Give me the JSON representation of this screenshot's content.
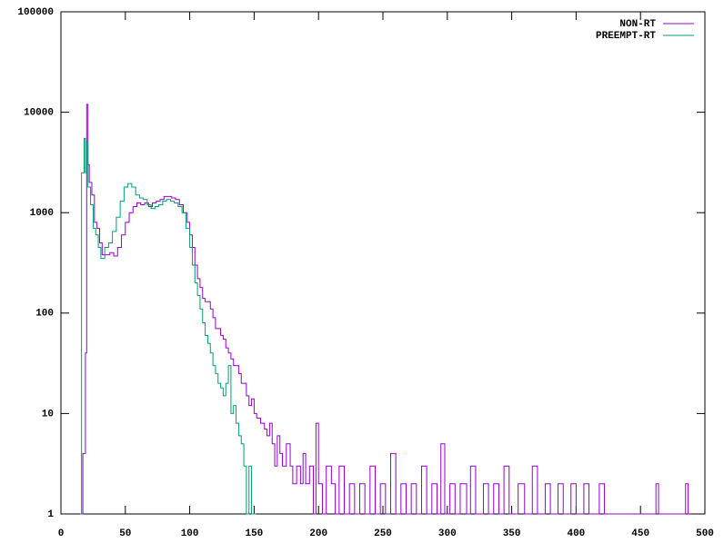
{
  "chart_data": {
    "type": "step",
    "log_y": true,
    "xlim": [
      0,
      500
    ],
    "xticks": [
      0,
      50,
      100,
      150,
      200,
      250,
      300,
      350,
      400,
      450,
      500
    ],
    "ylim": [
      1,
      100000
    ],
    "yticks": [
      1,
      10,
      100,
      1000,
      10000,
      100000
    ],
    "legend": "top-right",
    "series": [
      {
        "name": "NON-RT",
        "color": "#9400d3",
        "x": [
          15,
          17,
          19,
          20,
          21,
          22,
          24,
          26,
          28,
          30,
          32,
          35,
          38,
          41,
          44,
          47,
          50,
          53,
          56,
          59,
          62,
          65,
          68,
          71,
          74,
          77,
          80,
          83,
          86,
          89,
          92,
          95,
          98,
          100,
          102,
          104,
          106,
          108,
          110,
          112,
          114,
          116,
          118,
          120,
          122,
          124,
          126,
          128,
          130,
          132,
          134,
          136,
          138,
          140,
          142,
          144,
          146,
          148,
          150,
          152,
          155,
          158,
          160,
          162,
          164,
          166,
          168,
          170,
          172,
          175,
          178,
          180,
          183,
          186,
          188,
          190,
          193,
          196,
          198,
          200,
          203,
          206,
          210,
          213,
          216,
          220,
          224,
          228,
          232,
          236,
          240,
          244,
          248,
          252,
          256,
          260,
          264,
          268,
          272,
          276,
          280,
          284,
          288,
          292,
          295,
          298,
          302,
          306,
          310,
          315,
          318,
          322,
          328,
          332,
          336,
          340,
          344,
          348,
          355,
          360,
          366,
          370,
          376,
          380,
          386,
          390,
          396,
          400,
          406,
          410,
          418,
          422,
          430,
          440,
          450,
          462,
          464,
          485,
          487
        ],
        "values": [
          1,
          4,
          40,
          12000,
          3000,
          2000,
          1500,
          800,
          700,
          500,
          380,
          380,
          400,
          370,
          450,
          600,
          800,
          1000,
          1150,
          1250,
          1200,
          1250,
          1150,
          1250,
          1300,
          1350,
          1450,
          1450,
          1400,
          1350,
          1200,
          1000,
          800,
          600,
          450,
          300,
          220,
          180,
          140,
          130,
          130,
          110,
          90,
          70,
          70,
          60,
          55,
          45,
          40,
          35,
          30,
          30,
          25,
          20,
          20,
          15,
          12,
          14,
          10,
          9,
          8,
          7,
          6,
          8,
          5,
          3,
          6,
          4,
          3,
          5,
          3,
          2,
          3,
          2,
          4,
          2,
          3,
          1,
          8,
          2,
          1,
          3,
          2,
          1,
          3,
          1,
          2,
          1,
          2,
          1,
          3,
          1,
          2,
          1,
          4,
          1,
          2,
          1,
          2,
          1,
          3,
          1,
          2,
          1,
          5,
          1,
          2,
          1,
          2,
          1,
          3,
          1,
          2,
          1,
          2,
          1,
          3,
          1,
          2,
          1,
          3,
          1,
          2,
          1,
          2,
          1,
          2,
          1,
          2,
          1,
          2,
          1,
          1,
          1,
          1,
          2,
          1,
          2,
          1
        ]
      },
      {
        "name": "PREEMPT-RT",
        "color": "#009e73",
        "x": [
          15,
          16,
          18,
          19,
          20,
          21,
          23,
          25,
          27,
          29,
          31,
          34,
          37,
          40,
          43,
          46,
          49,
          52,
          55,
          58,
          61,
          64,
          67,
          70,
          73,
          76,
          79,
          82,
          85,
          88,
          91,
          94,
          97,
          100,
          102,
          104,
          106,
          108,
          110,
          112,
          114,
          116,
          118,
          120,
          122,
          124,
          126,
          128,
          130,
          132,
          134,
          136,
          138,
          140,
          142,
          144,
          146,
          148,
          150
        ],
        "values": [
          1,
          2500,
          5500,
          2500,
          5000,
          1800,
          1200,
          700,
          600,
          450,
          350,
          450,
          500,
          650,
          900,
          1300,
          1800,
          1950,
          1800,
          1500,
          1400,
          1350,
          1200,
          1100,
          1150,
          1200,
          1300,
          1350,
          1300,
          1250,
          1150,
          1000,
          700,
          450,
          300,
          200,
          150,
          110,
          80,
          60,
          50,
          40,
          30,
          25,
          20,
          18,
          15,
          20,
          30,
          10,
          12,
          8,
          6,
          5,
          3,
          1,
          3,
          1,
          1
        ]
      }
    ]
  }
}
